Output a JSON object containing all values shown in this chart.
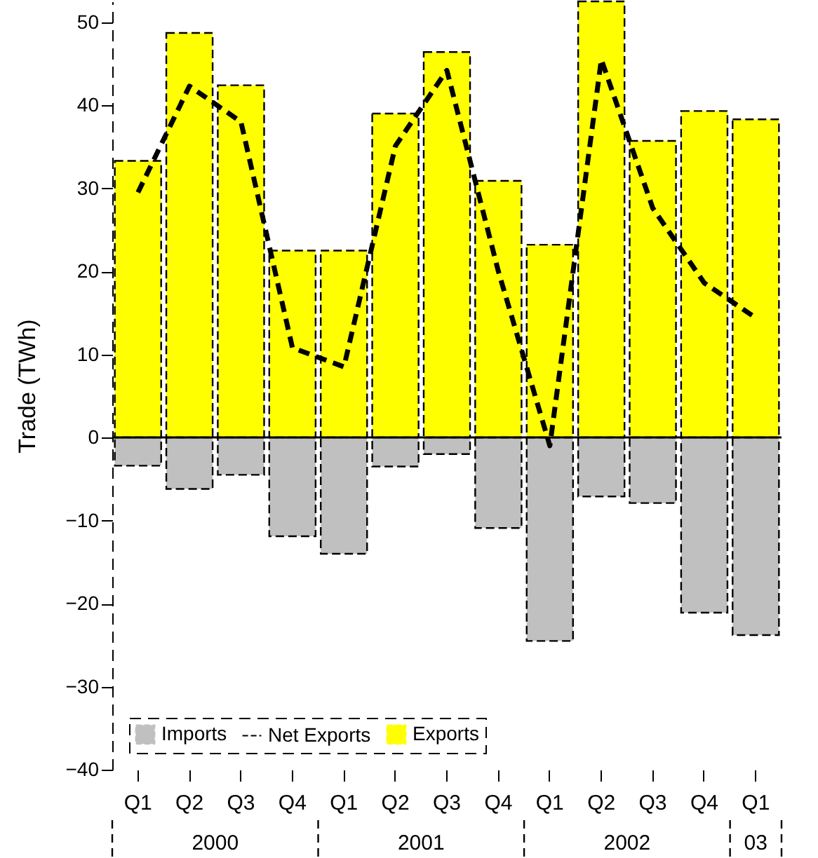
{
  "chart_data": {
    "type": "bar",
    "ylabel": "Trade (TWh)",
    "categories": [
      "Q1",
      "Q2",
      "Q3",
      "Q4",
      "Q1",
      "Q2",
      "Q3",
      "Q4",
      "Q1",
      "Q2",
      "Q3",
      "Q4",
      "Q1"
    ],
    "series": [
      {
        "name": "Imports",
        "color": "#c0c0c0",
        "values": [
          -3.4,
          -6.2,
          -4.5,
          -11.9,
          -14.0,
          -3.5,
          -2.0,
          -10.9,
          -24.5,
          -7.1,
          -7.9,
          -21.1,
          -23.8
        ]
      },
      {
        "name": "Net Exports",
        "type": "line",
        "color": "#000000",
        "line_style": "dashed",
        "values": [
          29.5,
          42.3,
          38.0,
          10.8,
          8.5,
          35.1,
          44.2,
          20.0,
          -1.0,
          45.5,
          27.6,
          18.6,
          14.4
        ]
      },
      {
        "name": "Exports",
        "color": "#ffff00",
        "values": [
          33.3,
          48.7,
          42.4,
          22.5,
          22.5,
          39.0,
          46.4,
          30.9,
          23.2,
          52.5,
          35.7,
          39.3,
          38.3
        ]
      }
    ],
    "ylim": [
      -40,
      52.5
    ],
    "yticks": [
      -40,
      -30,
      -20,
      -10,
      0,
      10,
      20,
      30,
      40,
      50
    ],
    "annotations": [
      "2000",
      "2001",
      "2002",
      "03"
    ],
    "stacked": true,
    "ref_lines": [
      {
        "axis": "y",
        "value": 0
      }
    ],
    "grid": false,
    "legend": "bottom left",
    "marker": "none"
  }
}
